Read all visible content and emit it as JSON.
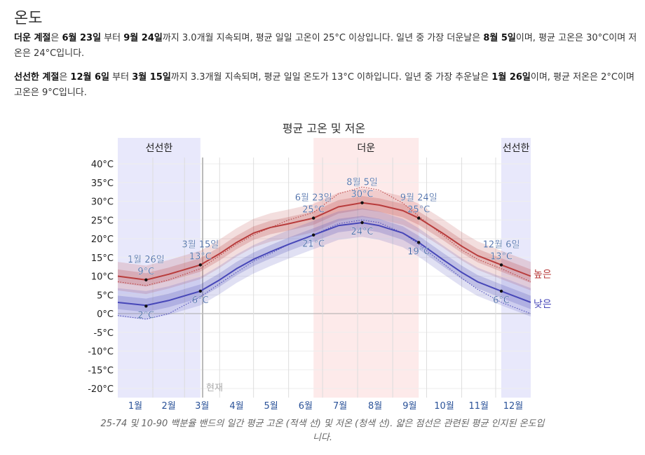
{
  "heading": "온도",
  "summary": {
    "hot": {
      "label": "더운 계절",
      "text1": "은 ",
      "start": "6월 23일",
      "text2": " 부터 ",
      "end": "9월 24일",
      "text3": "까지 3.0개월 지속되며, 평균 일일 고온이 25°C 이상입니다. 일년 중 가장 더운날은 ",
      "extreme_day": "8월 5일",
      "text4": "이며, 평균 고온은 30°C이며 저온은 24°C입니다."
    },
    "cold": {
      "label": "선선한 계절",
      "text1": "은 ",
      "start": "12월 6일",
      "text2": " 부터 ",
      "end": "3월 15일",
      "text3": "까지 3.3개월 지속되며, 평균 일일 온도가 13°C 이하입니다. 일년 중 가장 추운날은 ",
      "extreme_day": "1월 26일",
      "text4": "이며, 평균 저온은 2°C이며 고온은 9°C입니다."
    }
  },
  "chart_data": {
    "type": "line",
    "title": "평균 고온 및 저온",
    "ylim": [
      -22.5,
      43
    ],
    "yticks": [
      40,
      35,
      30,
      25,
      20,
      15,
      10,
      5,
      0,
      -5,
      -10,
      -15,
      -20
    ],
    "ytick_labels": [
      "40°C",
      "35°C",
      "30°C",
      "25°C",
      "20°C",
      "15°C",
      "10°C",
      "5°C",
      "0°C",
      "-5°C",
      "-10°C",
      "-15°C",
      "-20°C"
    ],
    "months": [
      "1월",
      "2월",
      "3월",
      "4월",
      "5월",
      "6월",
      "7월",
      "8월",
      "9월",
      "10월",
      "11월",
      "12월"
    ],
    "month_start_days": [
      0,
      31,
      59,
      90,
      120,
      151,
      181,
      212,
      243,
      273,
      304,
      334,
      365
    ],
    "seasons": [
      {
        "name": "선선한",
        "start_day": 0,
        "end_day": 73,
        "color": "#e8e8fb",
        "show_label": true
      },
      {
        "name": "더운",
        "start_day": 173,
        "end_day": 266,
        "color": "#fdeaea",
        "show_label": true
      },
      {
        "name": "선선한",
        "start_day": 339,
        "end_day": 365,
        "color": "#e8e8fb",
        "show_label": true
      }
    ],
    "now_label": "현재",
    "now_day": 75,
    "days": [
      0,
      25,
      45,
      73,
      90,
      105,
      120,
      135,
      151,
      173,
      195,
      216,
      231,
      252,
      266,
      287,
      304,
      318,
      339,
      365
    ],
    "series": [
      {
        "name": "높은",
        "color": "#b83c3c",
        "values": [
          10,
          9,
          10.5,
          13,
          16,
          19,
          21.5,
          23,
          24,
          25.5,
          28.5,
          29.6,
          29,
          27.5,
          25.5,
          21.5,
          18,
          15.5,
          13,
          10
        ],
        "perceived": [
          8.5,
          7.5,
          9,
          12,
          15.5,
          18.5,
          21,
          23,
          25,
          27,
          32,
          33.8,
          33,
          29.5,
          26,
          21,
          17,
          14.5,
          12,
          8.5
        ]
      },
      {
        "name": "낮은",
        "color": "#4747b8",
        "values": [
          3,
          2.2,
          3.5,
          6,
          9,
          12,
          14.5,
          16.5,
          18.5,
          21,
          23.5,
          24.3,
          23.5,
          21.5,
          19,
          14.5,
          11,
          8.5,
          6,
          3
        ],
        "perceived": [
          -0.5,
          -1.5,
          0,
          4.5,
          8,
          11,
          14,
          16,
          18.5,
          21,
          24,
          25,
          24.3,
          21.5,
          18.5,
          13.5,
          9.5,
          6.5,
          3,
          0
        ]
      }
    ],
    "band_25_75": 1.8,
    "band_10_90": 3.8,
    "annotations": [
      {
        "day": 25,
        "value": 9,
        "lines": [
          "1월 26일",
          "9°C"
        ],
        "pos": "above"
      },
      {
        "day": 25,
        "value": 2,
        "lines": [
          "2°C"
        ],
        "pos": "below"
      },
      {
        "day": 73,
        "value": 13,
        "lines": [
          "3월 15일",
          "13°C"
        ],
        "pos": "above"
      },
      {
        "day": 73,
        "value": 6,
        "lines": [
          "6°C"
        ],
        "pos": "below"
      },
      {
        "day": 173,
        "value": 25.5,
        "lines": [
          "6월 23일",
          "25°C"
        ],
        "pos": "above"
      },
      {
        "day": 173,
        "value": 21,
        "lines": [
          "21°C"
        ],
        "pos": "below"
      },
      {
        "day": 216,
        "value": 29.6,
        "lines": [
          "8월 5일",
          "30°C"
        ],
        "pos": "above"
      },
      {
        "day": 216,
        "value": 24.3,
        "lines": [
          "24°C"
        ],
        "pos": "below"
      },
      {
        "day": 266,
        "value": 25.5,
        "lines": [
          "9월 24일",
          "25°C"
        ],
        "pos": "above"
      },
      {
        "day": 266,
        "value": 19,
        "lines": [
          "19°C"
        ],
        "pos": "below"
      },
      {
        "day": 339,
        "value": 13,
        "lines": [
          "12월 6일",
          "13°C"
        ],
        "pos": "above"
      },
      {
        "day": 339,
        "value": 6,
        "lines": [
          "6°C"
        ],
        "pos": "below"
      }
    ],
    "caption": "25-74 및 10-90 백분율 밴드의 일간 평균 고온 (적색 선) 및 저온 (청색 선). 얇은 점선은 관련된 평균 인지된 온도입니다."
  }
}
